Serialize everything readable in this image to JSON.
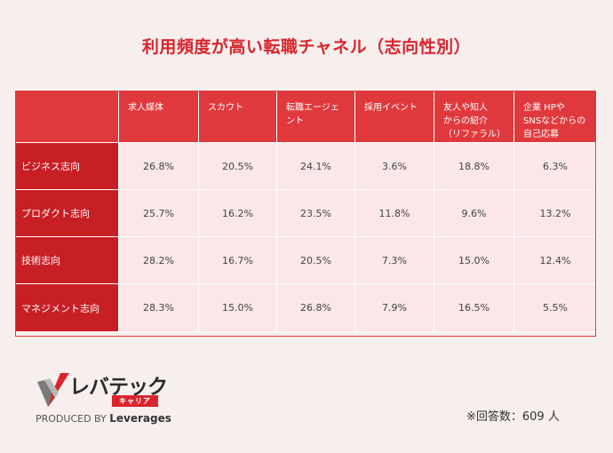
{
  "title": "利用頻度が高い転職チャネル（志向性別）",
  "chart_data": {
    "type": "table",
    "columns": [
      "求人媒体",
      "スカウト",
      "転職エージェント",
      "採用イベント",
      "友人や知人からの紹介（リファラル）",
      "企業 HPやSNSなどからの自己応募"
    ],
    "column_lines": [
      [
        "求人媒体"
      ],
      [
        "スカウト"
      ],
      [
        "転職エージェ",
        "ント"
      ],
      [
        "採用イベント"
      ],
      [
        "友人や知人",
        "からの紹介",
        "（リファラル）"
      ],
      [
        "企業 HPや",
        "SNSなどからの",
        "自己応募"
      ]
    ],
    "rows": [
      {
        "label": "ビジネス志向",
        "values": [
          "26.8%",
          "20.5%",
          "24.1%",
          "3.6%",
          "18.8%",
          "6.3%"
        ]
      },
      {
        "label": "プロダクト志向",
        "values": [
          "25.7%",
          "16.2%",
          "23.5%",
          "11.8%",
          "9.6%",
          "13.2%"
        ]
      },
      {
        "label": "技術志向",
        "values": [
          "28.2%",
          "16.7%",
          "20.5%",
          "7.3%",
          "15.0%",
          "12.4%"
        ]
      },
      {
        "label": "マネジメント志向",
        "values": [
          "28.3%",
          "15.0%",
          "26.8%",
          "7.9%",
          "16.5%",
          "5.5%"
        ]
      }
    ]
  },
  "logo": {
    "name": "レバテック",
    "sub": "キャリア",
    "produced_by": "PRODUCED BY",
    "brand": "Leverages"
  },
  "footnote": "※回答数：609 人",
  "colors": {
    "accent": "#d9252c",
    "header": "#e0393d",
    "row_header": "#c81f25",
    "cell": "#fbe7e7",
    "background": "#f7eeee"
  }
}
